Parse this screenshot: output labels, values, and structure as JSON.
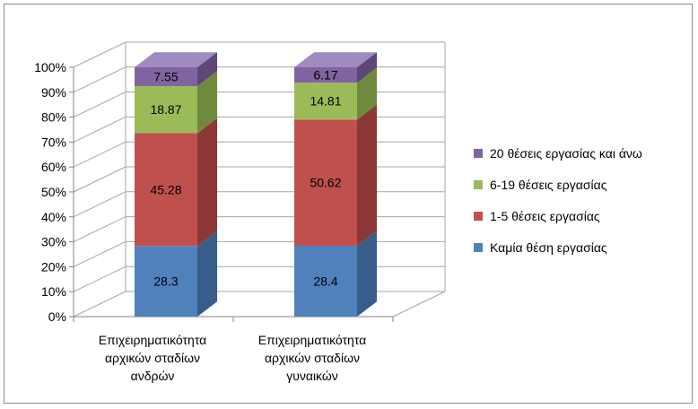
{
  "chart_data": {
    "type": "bar",
    "stacked": true,
    "percent_stacked": true,
    "three_d": true,
    "categories": [
      [
        "Επιχειρηματικότητα",
        "αρχικών σταδίων",
        "ανδρών"
      ],
      [
        "Επιχειρηματικότητα",
        "αρχικών σταδίων",
        "γυναικών"
      ]
    ],
    "series": [
      {
        "name": "Καμία θέση εργασίας",
        "values": [
          28.3,
          28.4
        ],
        "color": "#4f81bd",
        "side_color": "#385d8a",
        "top_color": "#7aa1d2"
      },
      {
        "name": "1-5 θέσεις εργασίας",
        "values": [
          45.28,
          50.62
        ],
        "color": "#c0504d",
        "side_color": "#8c3836",
        "top_color": "#d37c7a"
      },
      {
        "name": "6-19 θέσεις εργασίας",
        "values": [
          18.87,
          14.81
        ],
        "color": "#9bbb59",
        "side_color": "#6f8a3c",
        "top_color": "#b7d083"
      },
      {
        "name": "20 θέσεις εργασίας και άνω",
        "values": [
          7.55,
          6.17
        ],
        "color": "#8064a2",
        "side_color": "#5c4776",
        "top_color": "#a18ac0"
      }
    ],
    "data_labels": [
      [
        "28.3",
        "28.4"
      ],
      [
        "45.28",
        "50.62"
      ],
      [
        "18.87",
        "14.81"
      ],
      [
        "7.55",
        "6.17"
      ]
    ],
    "y_ticks": [
      "0%",
      "10%",
      "20%",
      "30%",
      "40%",
      "50%",
      "60%",
      "70%",
      "80%",
      "90%",
      "100%"
    ],
    "ylim": [
      0,
      100
    ],
    "grid": true,
    "legend_position": "right",
    "title": "",
    "xlabel": "",
    "ylabel": ""
  }
}
